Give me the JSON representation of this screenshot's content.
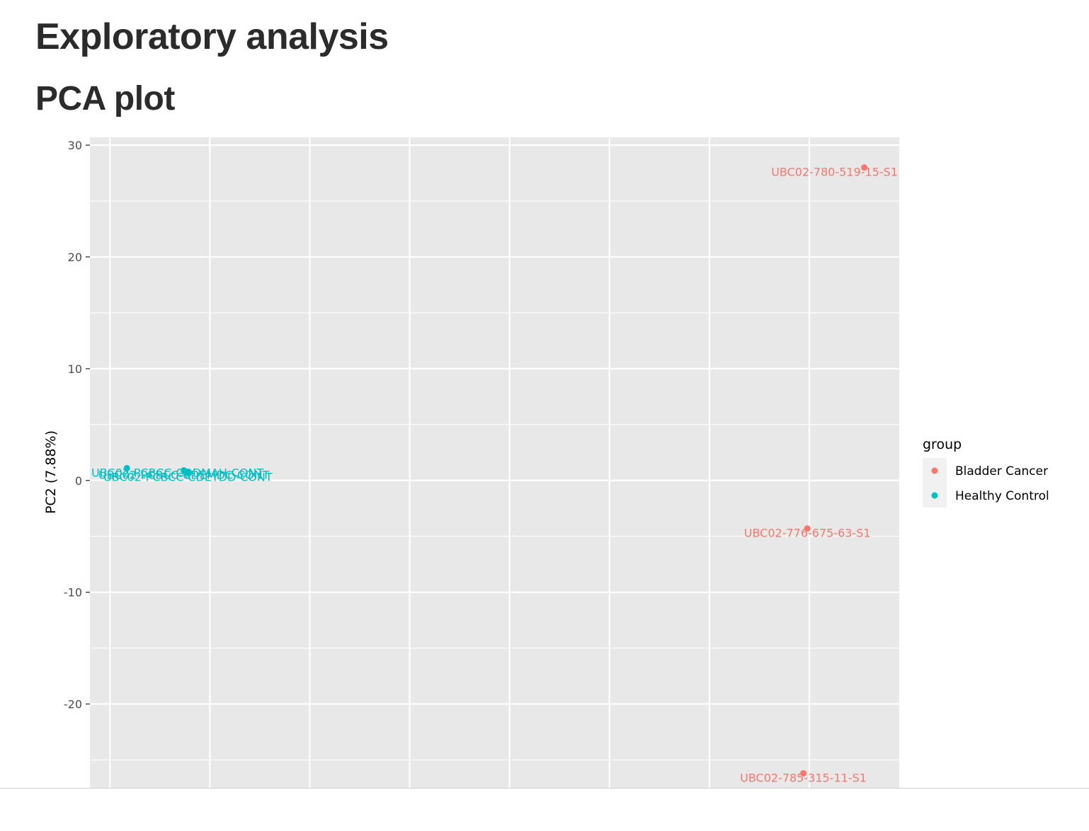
{
  "page": {
    "title": "Exploratory analysis",
    "subtitle": "PCA plot"
  },
  "chart_data": {
    "type": "scatter",
    "xlabel": "",
    "ylabel": "PC2 (7.88%)",
    "xlim": [
      -52,
      29
    ],
    "ylim": [
      -27.5,
      30.7
    ],
    "y_ticks": [
      30,
      20,
      10,
      0,
      -10,
      -20
    ],
    "y_tick_labels": [
      "30",
      "20",
      "10",
      "0",
      "-10",
      "-20"
    ],
    "grid": true,
    "background": "#e8e8e8",
    "legend": {
      "title": "group",
      "placement": "right",
      "entries": [
        {
          "label": "Bladder Cancer",
          "color": "#f8766d"
        },
        {
          "label": "Healthy Control",
          "color": "#00bfc4"
        }
      ]
    },
    "points": [
      {
        "label": "UBC02-780-519-15-S1",
        "group": "Bladder Cancer",
        "x": 25.5,
        "y": 28.0
      },
      {
        "label": "UBC02-776-675-63-S1",
        "group": "Bladder Cancer",
        "x": 19.8,
        "y": -4.3
      },
      {
        "label": "UBC02-785-315-11-S1",
        "group": "Bladder Cancer",
        "x": 19.4,
        "y": -26.2
      },
      {
        "label": "UBC02-PCBCC-CDDMAH-CONT",
        "group": "Healthy Control",
        "x": -48.3,
        "y": 1.1
      },
      {
        "label": "UBC02-PCBCC-CDEMDC-CONT",
        "group": "Healthy Control",
        "x": -42.6,
        "y": 0.9
      },
      {
        "label": "UBC02-PCBCC-CDEYDD-CONT",
        "group": "Healthy Control",
        "x": -42.2,
        "y": 0.7
      }
    ]
  }
}
